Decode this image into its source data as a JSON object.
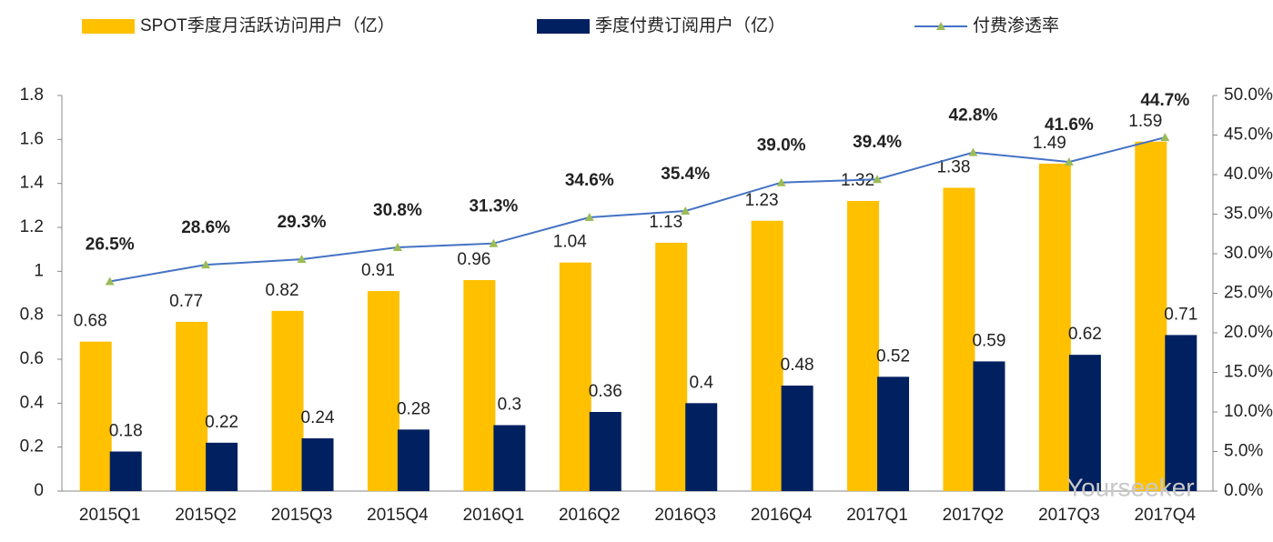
{
  "chart_data": {
    "type": "bar-line",
    "categories": [
      "2015Q1",
      "2015Q2",
      "2015Q3",
      "2015Q4",
      "2016Q1",
      "2016Q2",
      "2016Q3",
      "2016Q4",
      "2017Q1",
      "2017Q2",
      "2017Q3",
      "2017Q4"
    ],
    "series": [
      {
        "name": "SPOT季度月活跃访问用户（亿）",
        "color": "#FFC000",
        "kind": "bar",
        "axis": "y",
        "values": [
          0.68,
          0.77,
          0.82,
          0.91,
          0.96,
          1.04,
          1.13,
          1.23,
          1.32,
          1.38,
          1.49,
          1.59
        ]
      },
      {
        "name": "季度付费订阅用户（亿）",
        "color": "#002060",
        "kind": "bar",
        "axis": "y",
        "values": [
          0.18,
          0.22,
          0.24,
          0.28,
          0.3,
          0.36,
          0.4,
          0.48,
          0.52,
          0.59,
          0.62,
          0.71
        ]
      },
      {
        "name": "付费渗透率",
        "color": "#4472C4",
        "marker_color": "#9BBB59",
        "kind": "line",
        "axis": "y2",
        "values": [
          26.5,
          28.6,
          29.3,
          30.8,
          31.3,
          34.6,
          35.4,
          39.0,
          39.4,
          42.8,
          41.6,
          44.7
        ],
        "value_labels": [
          "26.5%",
          "28.6%",
          "29.3%",
          "30.8%",
          "31.3%",
          "34.6%",
          "35.4%",
          "39.0%",
          "39.4%",
          "42.8%",
          "41.6%",
          "44.7%"
        ]
      }
    ],
    "ylim": [
      0,
      1.8
    ],
    "yticks": [
      0,
      0.2,
      0.4,
      0.6,
      0.8,
      1,
      1.2,
      1.4,
      1.6,
      1.8
    ],
    "y2lim": [
      0,
      50
    ],
    "y2ticks": [
      {
        "value": 0,
        "label": "0.0%"
      },
      {
        "value": 5,
        "label": "5.0%"
      },
      {
        "value": 10,
        "label": "10.0%"
      },
      {
        "value": 15,
        "label": "15.0%"
      },
      {
        "value": 20,
        "label": "20.0%"
      },
      {
        "value": 25,
        "label": "25.0%"
      },
      {
        "value": 30,
        "label": "30.0%"
      },
      {
        "value": 35,
        "label": "35.0%"
      },
      {
        "value": 40,
        "label": "40.0%"
      },
      {
        "value": 45,
        "label": "45.0%"
      },
      {
        "value": 50,
        "label": "50.0%"
      }
    ],
    "grid": false,
    "legend": "top",
    "watermark": "Yourseeker"
  }
}
